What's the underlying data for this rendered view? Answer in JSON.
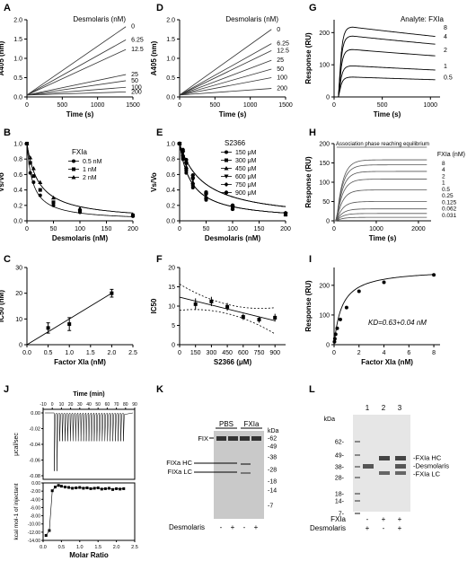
{
  "panel_letters": [
    "A",
    "B",
    "C",
    "D",
    "E",
    "F",
    "G",
    "H",
    "I",
    "J",
    "K",
    "L"
  ],
  "chart_data": [
    {
      "panel": "A",
      "type": "line",
      "xlabel": "Time (s)",
      "ylabel": "A405 (nm)",
      "xlim": [
        0,
        1500
      ],
      "ylim": [
        0,
        2.0
      ],
      "xticks": [
        0,
        500,
        1000,
        1500
      ],
      "yticks": [
        0.0,
        0.5,
        1.0,
        1.5,
        2.0
      ],
      "legend_title": "Desmolaris (nM)",
      "series": [
        {
          "name": "0",
          "x": [
            0,
            1400
          ],
          "y": [
            0.05,
            1.82
          ]
        },
        {
          "name": "6.25",
          "x": [
            0,
            1400
          ],
          "y": [
            0.05,
            1.48
          ]
        },
        {
          "name": "12.5",
          "x": [
            0,
            1400
          ],
          "y": [
            0.05,
            1.23
          ]
        },
        {
          "name": "25",
          "x": [
            0,
            1400
          ],
          "y": [
            0.05,
            0.58
          ]
        },
        {
          "name": "50",
          "x": [
            0,
            1400
          ],
          "y": [
            0.05,
            0.42
          ]
        },
        {
          "name": "100",
          "x": [
            0,
            1400
          ],
          "y": [
            0.05,
            0.25
          ]
        },
        {
          "name": "200",
          "x": [
            0,
            1400
          ],
          "y": [
            0.05,
            0.13
          ]
        }
      ]
    },
    {
      "panel": "D",
      "type": "line",
      "xlabel": "Time (s)",
      "ylabel": "A405 (nm)",
      "xlim": [
        0,
        1500
      ],
      "ylim": [
        0,
        2.0
      ],
      "xticks": [
        0,
        500,
        1000,
        1500
      ],
      "yticks": [
        0.0,
        0.5,
        1.0,
        1.5,
        2.0
      ],
      "legend_title": "Desmolaris (nM)",
      "series": [
        {
          "name": "0",
          "x": [
            0,
            1300
          ],
          "y": [
            0.05,
            1.75
          ]
        },
        {
          "name": "6.25",
          "x": [
            0,
            1300
          ],
          "y": [
            0.05,
            1.38
          ]
        },
        {
          "name": "12.5",
          "x": [
            0,
            1300
          ],
          "y": [
            0.05,
            1.2
          ]
        },
        {
          "name": "25",
          "x": [
            0,
            1300
          ],
          "y": [
            0.05,
            0.95
          ]
        },
        {
          "name": "50",
          "x": [
            0,
            1300
          ],
          "y": [
            0.05,
            0.72
          ]
        },
        {
          "name": "100",
          "x": [
            0,
            1300
          ],
          "y": [
            0.05,
            0.5
          ]
        },
        {
          "name": "200",
          "x": [
            0,
            1300
          ],
          "y": [
            0.05,
            0.22
          ]
        }
      ]
    },
    {
      "panel": "G",
      "type": "line",
      "xlabel": "Time (s)",
      "ylabel": "Response (RU)",
      "xlim": [
        0,
        1100
      ],
      "ylim": [
        0,
        240
      ],
      "xticks": [
        0,
        500,
        1000
      ],
      "yticks": [
        0,
        100,
        200
      ],
      "legend_title": "Analyte: FXIa",
      "series": [
        {
          "name": "8",
          "plateau": 218
        },
        {
          "name": "4",
          "plateau": 190
        },
        {
          "name": "2",
          "plateau": 148
        },
        {
          "name": "1",
          "plateau": 97
        },
        {
          "name": "0.5",
          "plateau": 62
        }
      ]
    },
    {
      "panel": "B",
      "type": "scatter",
      "xlabel": "Desmolaris (nM)",
      "ylabel": "Vs/Vo",
      "xlim": [
        0,
        200
      ],
      "ylim": [
        0,
        1.0
      ],
      "xticks": [
        0,
        50,
        100,
        150,
        200
      ],
      "yticks": [
        0.0,
        0.2,
        0.4,
        0.6,
        0.8,
        1.0
      ],
      "legend_title": "FXIa",
      "series": [
        {
          "name": "0.5 nM",
          "x": [
            0,
            6.25,
            12.5,
            25,
            50,
            100,
            200
          ],
          "y": [
            1.0,
            0.62,
            0.5,
            0.33,
            0.2,
            0.11,
            0.06
          ]
        },
        {
          "name": "1 nM",
          "x": [
            0,
            6.25,
            12.5,
            25,
            50,
            100,
            200
          ],
          "y": [
            1.0,
            0.75,
            0.58,
            0.4,
            0.24,
            0.13,
            0.07
          ]
        },
        {
          "name": "2 nM",
          "x": [
            0,
            6.25,
            12.5,
            25,
            50,
            100,
            200
          ],
          "y": [
            1.0,
            0.82,
            0.68,
            0.5,
            0.3,
            0.16,
            0.08
          ]
        }
      ]
    },
    {
      "panel": "E",
      "type": "scatter",
      "xlabel": "Desmolaris (nM)",
      "ylabel": "Vs/Vo",
      "xlim": [
        0,
        200
      ],
      "ylim": [
        0,
        1.0
      ],
      "xticks": [
        0,
        50,
        100,
        150,
        200
      ],
      "yticks": [
        0.0,
        0.2,
        0.4,
        0.6,
        0.8,
        1.0
      ],
      "legend_title": "S2366",
      "series": [
        {
          "name": "150 μM",
          "x": [
            0,
            6.25,
            12.5,
            25,
            50,
            100,
            200
          ],
          "y": [
            1.0,
            0.8,
            0.62,
            0.43,
            0.27,
            0.15,
            0.08
          ]
        },
        {
          "name": "300 μM",
          "x": [
            0,
            6.25,
            12.5,
            25,
            50,
            100,
            200
          ],
          "y": [
            1.0,
            0.83,
            0.66,
            0.47,
            0.29,
            0.16,
            0.08
          ]
        },
        {
          "name": "450 μM",
          "x": [
            0,
            6.25,
            12.5,
            25,
            50,
            100,
            200
          ],
          "y": [
            1.0,
            0.86,
            0.7,
            0.5,
            0.31,
            0.17,
            0.09
          ]
        },
        {
          "name": "600 μM",
          "x": [
            0,
            6.25,
            12.5,
            25,
            50,
            100,
            200
          ],
          "y": [
            1.0,
            0.88,
            0.73,
            0.53,
            0.33,
            0.18,
            0.09
          ]
        },
        {
          "name": "750 μM",
          "x": [
            0,
            6.25,
            12.5,
            25,
            50,
            100,
            200
          ],
          "y": [
            1.0,
            0.9,
            0.76,
            0.56,
            0.35,
            0.19,
            0.1
          ]
        },
        {
          "name": "900 μM",
          "x": [
            0,
            6.25,
            12.5,
            25,
            50,
            100,
            200
          ],
          "y": [
            1.0,
            0.92,
            0.79,
            0.59,
            0.37,
            0.2,
            0.1
          ]
        }
      ]
    },
    {
      "panel": "H",
      "type": "line",
      "xlabel": "Time (s)",
      "ylabel": "Response (RU)",
      "xlim": [
        0,
        2300
      ],
      "ylim": [
        0,
        200
      ],
      "xticks": [
        0,
        1000,
        2000
      ],
      "yticks": [
        0,
        50,
        100,
        150,
        200
      ],
      "legend_title": "FXIa (nM)",
      "annotation": "Association phase reaching equilibrium",
      "series": [
        {
          "name": "8",
          "plateau": 158
        },
        {
          "name": "4",
          "plateau": 145
        },
        {
          "name": "2",
          "plateau": 128
        },
        {
          "name": "1",
          "plateau": 108
        },
        {
          "name": "0.5",
          "plateau": 80
        },
        {
          "name": "0.25",
          "plateau": 50
        },
        {
          "name": "0.125",
          "plateau": 31
        },
        {
          "name": "0.062",
          "plateau": 19
        },
        {
          "name": "0.031",
          "plateau": 9
        }
      ]
    },
    {
      "panel": "C",
      "type": "scatter",
      "xlabel": "Factor XIa (nM)",
      "ylabel": "IC50 (nM)",
      "xlim": [
        0,
        2.5
      ],
      "ylim": [
        0,
        30
      ],
      "xticks": [
        0.0,
        0.5,
        1.0,
        1.5,
        2.0,
        2.5
      ],
      "yticks": [
        0,
        10,
        20,
        30
      ],
      "x": [
        0.5,
        1.0,
        2.0
      ],
      "y": [
        6.5,
        8.0,
        20.0
      ],
      "error": [
        2.0,
        2.5,
        1.5
      ],
      "fit": {
        "x": [
          0,
          2.0
        ],
        "y": [
          0,
          20
        ]
      }
    },
    {
      "panel": "F",
      "type": "scatter",
      "xlabel": "S2366 (μM)",
      "ylabel": "IC50",
      "xlim": [
        0,
        1000
      ],
      "ylim": [
        0,
        20
      ],
      "xticks": [
        0,
        150,
        300,
        450,
        600,
        750,
        900
      ],
      "yticks": [
        0,
        5,
        10,
        15,
        20
      ],
      "x": [
        150,
        300,
        450,
        600,
        750,
        900
      ],
      "y": [
        10.5,
        11.2,
        9.8,
        7.2,
        6.5,
        7.0
      ],
      "error": [
        1.5,
        1.2,
        1.0,
        0.8,
        0.8,
        1.0
      ],
      "fit": {
        "x": [
          0,
          900
        ],
        "y": [
          12.3,
          6.2
        ]
      }
    },
    {
      "panel": "I",
      "type": "scatter",
      "xlabel": "Factor XIa (nM)",
      "ylabel": "Response (RU)",
      "xlim": [
        0,
        8.5
      ],
      "ylim": [
        0,
        260
      ],
      "xticks": [
        0,
        2,
        4,
        6,
        8
      ],
      "yticks": [
        0,
        100,
        200
      ],
      "x": [
        0.031,
        0.062,
        0.125,
        0.25,
        0.5,
        1,
        2,
        4,
        8
      ],
      "y": [
        10,
        20,
        35,
        55,
        85,
        125,
        180,
        210,
        235
      ],
      "annotation": "KD=0.63+0.04 nM",
      "fit_kd": 0.63,
      "fit_bmax": 255
    },
    {
      "panel": "J",
      "type": "line",
      "title_top": "Time (min)",
      "top_ticks": [
        -10,
        0,
        10,
        20,
        30,
        40,
        50,
        60,
        70,
        80,
        90
      ],
      "ylabel_top": "μcal/sec",
      "yticks_top": [
        0.0,
        -0.02,
        -0.04,
        -0.06,
        -0.08
      ],
      "xlabel": "Molar Ratio",
      "ylabel": "kcal mol-1 of injectant",
      "xlim": [
        0,
        2.5
      ],
      "xticks": [
        0.0,
        0.5,
        1.0,
        1.5,
        2.0,
        2.5
      ],
      "ylim": [
        -14,
        0
      ],
      "yticks": [
        0.0,
        -2.0,
        -4.0,
        -6.0,
        -8.0,
        -10.0,
        -12.0,
        -14.0
      ],
      "x": [
        0.08,
        0.17,
        0.25,
        0.33,
        0.42,
        0.5,
        0.6,
        0.7,
        0.8,
        0.9,
        1.0,
        1.1,
        1.2,
        1.3,
        1.4,
        1.5,
        1.6,
        1.7,
        1.8,
        1.9,
        2.0,
        2.1,
        2.2
      ],
      "y": [
        -12.8,
        -11.6,
        -1.9,
        -1.0,
        -0.6,
        -0.8,
        -1.0,
        -1.1,
        -1.3,
        -1.2,
        -1.1,
        -1.3,
        -1.2,
        -1.4,
        -1.3,
        -1.2,
        -1.5,
        -1.4,
        -1.3,
        -1.6,
        -1.4,
        -1.5,
        -1.4
      ]
    }
  ],
  "gel_k": {
    "lane_headers": [
      "PBS",
      "FXIa"
    ],
    "kda_label": "kDa",
    "markers": [
      "62",
      "49",
      "38",
      "28",
      "18",
      "14",
      "7"
    ],
    "band_labels": {
      "fix": "FIX",
      "hc": "FIXa HC",
      "lc": "FIXa LC"
    },
    "row_label": "Desmolaris",
    "signs": [
      "-",
      "+",
      "-",
      "+"
    ]
  },
  "gel_l": {
    "kda_label": "kDa",
    "markers": [
      "62",
      "49",
      "38",
      "28",
      "18",
      "14",
      "7"
    ],
    "lane_numbers": [
      "1",
      "2",
      "3"
    ],
    "band_labels": [
      "FXIa HC",
      "Desmolaris",
      "FXIa LC"
    ],
    "row1_label": "FXIa",
    "row1_signs": [
      "-",
      "+",
      "+"
    ],
    "row2_label": "Desmolaris",
    "row2_signs": [
      "+",
      "-",
      "+"
    ]
  }
}
